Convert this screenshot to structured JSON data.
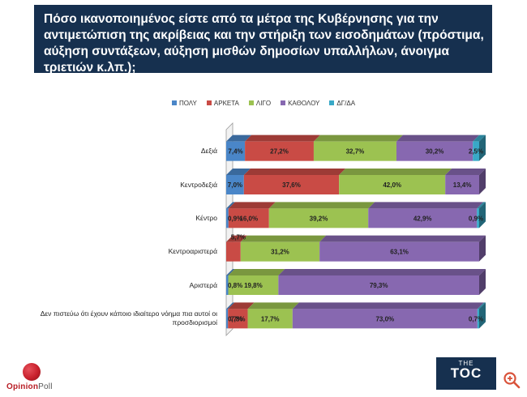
{
  "title": "Πόσο ικανοποιημένος είστε από τα μέτρα της Κυβέρνησης για την αντιμετώπιση της ακρίβειας και την στήριξη των εισοδημάτων (πρόστιμα, αύξηση συντάξεων, αύξηση μισθών δημοσίων υπαλλήλων, άνοιγμα τριετιών κ.λπ.);",
  "brand_left": {
    "part1": "Opinion",
    "part2": "Poll"
  },
  "brand_right": {
    "line1": "THE",
    "line2": "TOC"
  },
  "colors": {
    "title_bg": "#16304f"
  },
  "chart_data": {
    "type": "bar",
    "orientation": "horizontal",
    "stacked": true,
    "normalized_to": 100,
    "categories": [
      "Δεξιά",
      "Κεντροδεξιά",
      "Κέντρο",
      "Κεντροαριστερά",
      "Αριστερά",
      "Δεν πιστεύω ότι έχουν κάποιο ιδιαίτερο νόημα πια αυτοί οι προσδιορισμοί"
    ],
    "series": [
      {
        "name": "ΠΟΛΥ",
        "color": "#4a86c8",
        "values": [
          7.4,
          7.0,
          0.9,
          0,
          0.8,
          0.7
        ],
        "labels": [
          "7,4%",
          "7,0%",
          "0,9%",
          "",
          "0,8%",
          "0,7%"
        ]
      },
      {
        "name": "ΑΡΚΕΤΑ",
        "color": "#c94b45",
        "values": [
          27.2,
          37.6,
          16.0,
          5.7,
          0,
          7.8
        ],
        "labels": [
          "27,2%",
          "37,6%",
          "16,0%",
          "5,7%",
          "",
          "7,8%"
        ]
      },
      {
        "name": "ΛΙΓΟ",
        "color": "#9cc251",
        "values": [
          32.7,
          42.0,
          39.2,
          31.2,
          19.8,
          17.7
        ],
        "labels": [
          "32,7%",
          "42,0%",
          "39,2%",
          "31,2%",
          "19,8%",
          "17,7%"
        ]
      },
      {
        "name": "ΚΑΘΟΛΟΥ",
        "color": "#8768b0",
        "values": [
          30.2,
          13.4,
          42.9,
          63.1,
          79.3,
          73.0
        ],
        "labels": [
          "30,2%",
          "13,4%",
          "42,9%",
          "63,1%",
          "79,3%",
          "73,0%"
        ]
      },
      {
        "name": "ΔΓ/ΔΑ",
        "color": "#39a9c7",
        "values": [
          2.5,
          0,
          0.9,
          0,
          0,
          0.7
        ],
        "labels": [
          "2,5%",
          "",
          "0,9%",
          "",
          "",
          "0,7%"
        ]
      }
    ],
    "legend_position": "top-center",
    "grid": false
  }
}
